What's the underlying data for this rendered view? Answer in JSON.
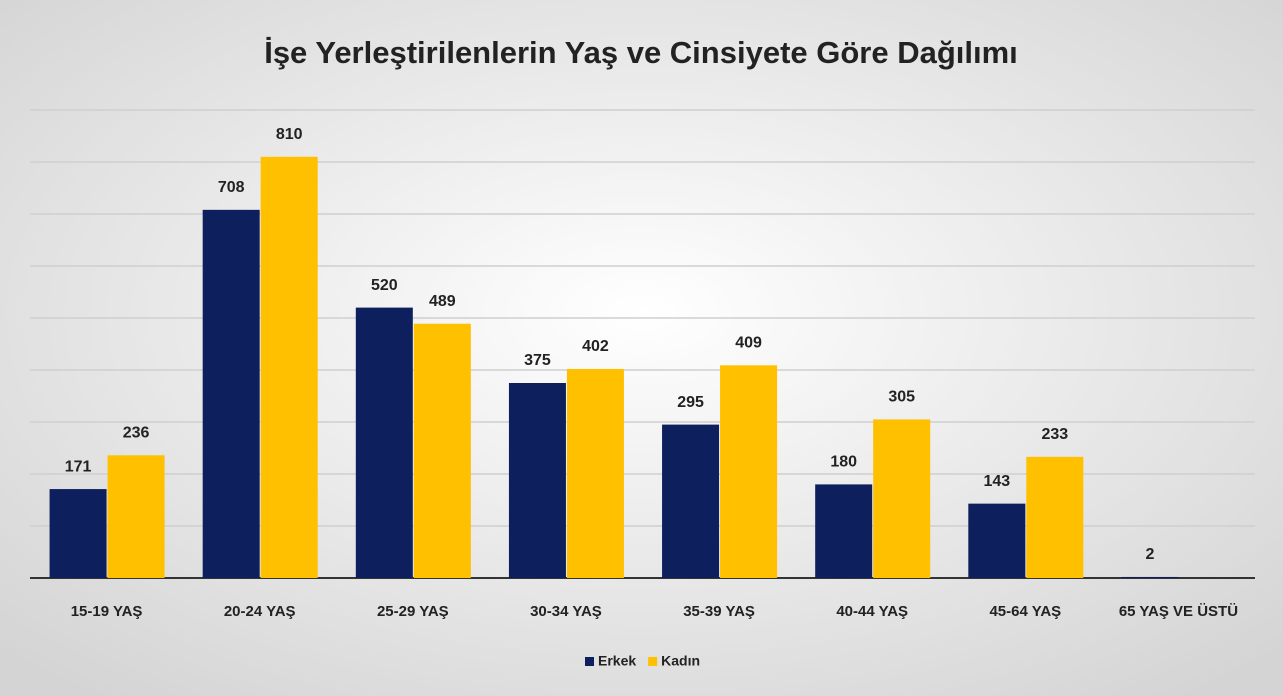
{
  "chart_data": {
    "type": "bar",
    "title": "İşe Yerleştirilenlerin Yaş ve Cinsiyete Göre Dağılımı",
    "categories": [
      "15-19 YAŞ",
      "20-24 YAŞ",
      "25-29 YAŞ",
      "30-34 YAŞ",
      "35-39 YAŞ",
      "40-44 YAŞ",
      "45-64 YAŞ",
      "65 YAŞ VE ÜSTÜ"
    ],
    "series": [
      {
        "name": "Erkek",
        "color": "#0d1f5c",
        "values": [
          171,
          708,
          520,
          375,
          295,
          180,
          143,
          2
        ]
      },
      {
        "name": "Kadın",
        "color": "#ffc000",
        "values": [
          236,
          810,
          489,
          402,
          409,
          305,
          233,
          null
        ]
      }
    ],
    "ylim": [
      0,
      900
    ],
    "yticks": [
      0,
      100,
      200,
      300,
      400,
      500,
      600,
      700,
      800,
      900
    ],
    "grid": true,
    "legend": "bottom"
  }
}
